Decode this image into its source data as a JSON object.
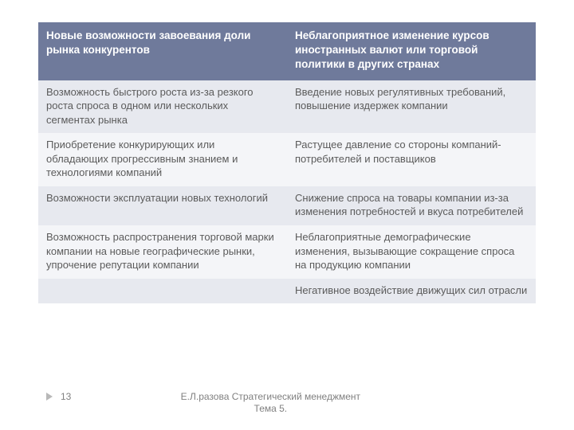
{
  "table": {
    "header_bg": "#6f7a9b",
    "header_fg": "#ffffff",
    "row_bg_alt1": "#e7e9ef",
    "row_bg_alt2": "#f4f5f8",
    "cell_fg": "#5b5b5b",
    "headers": [
      "Новые возможности завоевания доли рынка конкурентов",
      "Неблагоприятное изменение курсов иностранных валют или торговой политики в других странах"
    ],
    "rows": [
      [
        "Возможность быстрого роста из-за резкого роста спроса в одном или нескольких сегментах рынка",
        "Введение новых регулятивных требований, повышение издержек компании"
      ],
      [
        "Приобретение конкурирующих или обладающих прогрессивным знанием и технологиями компаний",
        "Растущее давление со  стороны компаний-потребителей и поставщиков"
      ],
      [
        "Возможности эксплуатации новых технологий",
        "Снижение спроса на товары компании из-за изменения потребностей и вкуса потребителей"
      ],
      [
        "Возможность распространения торговой марки компании на новые географические рынки, упрочение репутации компании",
        "Неблагоприятные демографические изменения, вызывающие сокращение спроса на  продукцию компании"
      ],
      [
        "",
        "Негативное воздействие движущих сил отрасли"
      ]
    ]
  },
  "footer": {
    "page": "13",
    "credit_line1": "Е.Л.разова Стратегический менеджмент",
    "credit_line2": "Тема 5."
  }
}
